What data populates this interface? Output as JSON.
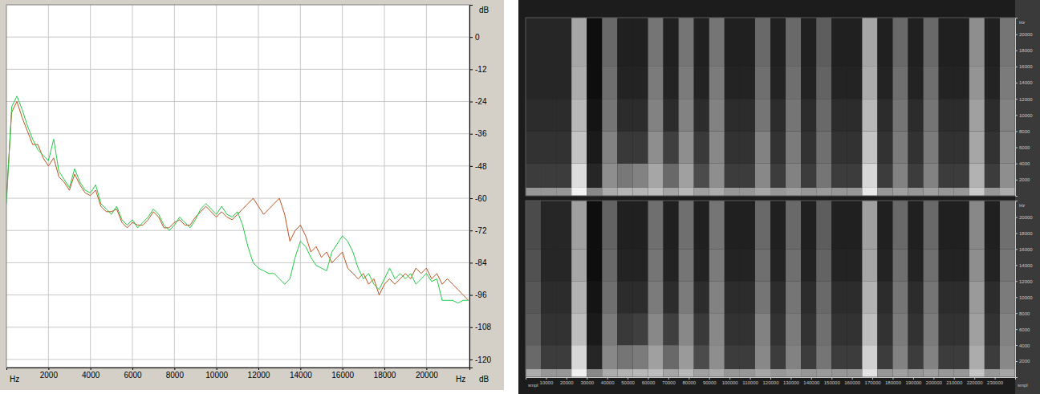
{
  "chart_data": [
    {
      "type": "line",
      "x_label": "Hz",
      "y_label": "dB",
      "x": [
        0,
        250,
        500,
        750,
        1000,
        1250,
        1500,
        1750,
        2000,
        2250,
        2500,
        2750,
        3000,
        3250,
        3500,
        3750,
        4000,
        4250,
        4500,
        4750,
        5000,
        5250,
        5500,
        5750,
        6000,
        6250,
        6500,
        6750,
        7000,
        7250,
        7500,
        7750,
        8000,
        8250,
        8500,
        8750,
        9000,
        9250,
        9500,
        9750,
        10000,
        10250,
        10500,
        10750,
        11000,
        11250,
        11500,
        11750,
        12000,
        12250,
        12500,
        12750,
        13000,
        13250,
        13500,
        13750,
        14000,
        14250,
        14500,
        14750,
        15000,
        15250,
        15500,
        15750,
        16000,
        16250,
        16500,
        16750,
        17000,
        17250,
        17500,
        17750,
        18000,
        18250,
        18500,
        18750,
        19000,
        19250,
        19500,
        19750,
        20000,
        20250,
        20500,
        20750,
        21000,
        21250,
        21500,
        21750,
        22000
      ],
      "series": [
        {
          "color": "#c0501e",
          "values": [
            -60,
            -28,
            -24,
            -30,
            -35,
            -40,
            -40,
            -45,
            -48,
            -45,
            -52,
            -54,
            -57,
            -51,
            -55,
            -58,
            -59,
            -57,
            -63,
            -65,
            -65,
            -64,
            -69,
            -71,
            -69,
            -70,
            -70,
            -68,
            -65,
            -67,
            -71,
            -71,
            -69,
            -68,
            -70,
            -70,
            -67,
            -65,
            -63,
            -65,
            -67,
            -65,
            -67,
            -68,
            -66,
            -64,
            -62,
            -60,
            -63,
            -66,
            -64,
            -62,
            -60,
            -66,
            -76,
            -72,
            -70,
            -74,
            -80,
            -78,
            -82,
            -80,
            -84,
            -82,
            -80,
            -86,
            -88,
            -90,
            -88,
            -92,
            -90,
            -96,
            -92,
            -90,
            -92,
            -90,
            -88,
            -90,
            -86,
            -88,
            -86,
            -90,
            -88,
            -92,
            -90,
            -92,
            -94,
            -96,
            -98
          ]
        },
        {
          "color": "#22cc44",
          "values": [
            -62,
            -26,
            -22,
            -27,
            -33,
            -38,
            -42,
            -44,
            -46,
            -38,
            -50,
            -53,
            -56,
            -49,
            -54,
            -57,
            -58,
            -55,
            -62,
            -64,
            -66,
            -63,
            -68,
            -70,
            -68,
            -71,
            -69,
            -67,
            -64,
            -66,
            -70,
            -72,
            -70,
            -67,
            -69,
            -71,
            -68,
            -64,
            -62,
            -64,
            -66,
            -63,
            -66,
            -67,
            -65,
            -70,
            -78,
            -84,
            -86,
            -87,
            -88,
            -88,
            -90,
            -92,
            -90,
            -82,
            -76,
            -78,
            -82,
            -85,
            -86,
            -87,
            -80,
            -77,
            -74,
            -76,
            -80,
            -86,
            -90,
            -88,
            -92,
            -94,
            -90,
            -86,
            -90,
            -88,
            -90,
            -88,
            -92,
            -90,
            -88,
            -91,
            -90,
            -98,
            -98,
            -98,
            -99,
            -98,
            -98
          ]
        }
      ],
      "xlim": [
        0,
        22050
      ],
      "xticks": [
        2000,
        4000,
        6000,
        8000,
        10000,
        12000,
        14000,
        16000,
        18000,
        20000
      ],
      "ylim": [
        -123,
        12
      ],
      "yticks": [
        0,
        -12,
        -24,
        -36,
        -48,
        -60,
        -72,
        -84,
        -96,
        -108,
        -120
      ],
      "grid": true
    },
    {
      "type": "heatmap",
      "y_label": "Hz",
      "tick_labels": "y",
      "x_bins": [
        0,
        7500,
        15000,
        22500,
        30000,
        37500,
        45000,
        52500,
        60000,
        67500,
        75000,
        82500,
        90000,
        97500,
        105000,
        112500,
        120000,
        127500,
        135000,
        142500,
        150000,
        157500,
        165000,
        172500,
        180000,
        187500,
        195000,
        202500,
        210000,
        217500,
        225000,
        232500,
        240000
      ],
      "y_bins": [
        0,
        1000,
        4000,
        8000,
        12000,
        16000,
        22050
      ],
      "cells": [
        [
          55,
          55,
          55,
          85,
          50,
          62,
          65,
          65,
          68,
          60,
          66,
          58,
          62,
          55,
          55,
          60,
          55,
          58,
          55,
          56,
          55,
          55,
          82,
          55,
          58,
          55,
          58,
          55,
          55,
          72,
          55,
          62
        ],
        [
          25,
          25,
          25,
          78,
          18,
          52,
          45,
          48,
          60,
          40,
          58,
          30,
          52,
          25,
          25,
          50,
          25,
          48,
          25,
          44,
          25,
          25,
          76,
          25,
          48,
          25,
          48,
          25,
          25,
          64,
          25,
          52
        ],
        [
          22,
          22,
          22,
          70,
          14,
          48,
          24,
          24,
          52,
          26,
          52,
          24,
          50,
          22,
          22,
          48,
          22,
          46,
          22,
          42,
          22,
          22,
          70,
          22,
          46,
          22,
          46,
          22,
          22,
          60,
          22,
          50
        ],
        [
          20,
          20,
          20,
          66,
          12,
          44,
          20,
          20,
          48,
          20,
          48,
          20,
          48,
          20,
          20,
          44,
          20,
          44,
          20,
          40,
          20,
          20,
          66,
          20,
          44,
          20,
          44,
          20,
          20,
          58,
          20,
          48
        ],
        [
          18,
          18,
          18,
          62,
          10,
          42,
          17,
          17,
          46,
          17,
          46,
          17,
          46,
          17,
          17,
          42,
          17,
          42,
          17,
          38,
          17,
          17,
          62,
          17,
          42,
          17,
          42,
          17,
          17,
          54,
          17,
          46
        ],
        [
          18,
          18,
          18,
          60,
          10,
          40,
          16,
          16,
          44,
          16,
          44,
          16,
          44,
          16,
          16,
          40,
          16,
          40,
          16,
          36,
          16,
          16,
          60,
          16,
          40,
          16,
          40,
          16,
          16,
          52,
          16,
          44
        ]
      ],
      "xlim": [
        0,
        240000
      ],
      "ylim": [
        0,
        22050
      ],
      "yticks": [
        2000,
        4000,
        6000,
        8000,
        10000,
        12000,
        14000,
        16000,
        18000,
        20000
      ]
    },
    {
      "type": "heatmap",
      "x_label": "smpl",
      "y_label": "Hz",
      "x_bins": [
        0,
        7500,
        15000,
        22500,
        30000,
        37500,
        45000,
        52500,
        60000,
        67500,
        75000,
        82500,
        90000,
        97500,
        105000,
        112500,
        120000,
        127500,
        135000,
        142500,
        150000,
        157500,
        165000,
        172500,
        180000,
        187500,
        195000,
        202500,
        210000,
        217500,
        225000,
        232500,
        240000
      ],
      "y_bins": [
        0,
        1000,
        4000,
        8000,
        12000,
        16000,
        22050
      ],
      "cells": [
        [
          62,
          55,
          55,
          84,
          50,
          62,
          64,
          66,
          68,
          60,
          66,
          58,
          62,
          55,
          55,
          60,
          55,
          58,
          55,
          56,
          55,
          55,
          80,
          55,
          58,
          55,
          58,
          55,
          55,
          70,
          55,
          60
        ],
        [
          40,
          25,
          25,
          76,
          18,
          50,
          44,
          46,
          58,
          40,
          56,
          30,
          52,
          25,
          25,
          50,
          25,
          48,
          25,
          44,
          25,
          25,
          74,
          25,
          48,
          25,
          48,
          25,
          25,
          62,
          25,
          50
        ],
        [
          36,
          22,
          22,
          68,
          14,
          46,
          24,
          26,
          50,
          26,
          50,
          24,
          50,
          22,
          22,
          48,
          22,
          46,
          22,
          42,
          22,
          22,
          68,
          22,
          46,
          22,
          46,
          22,
          22,
          58,
          22,
          48
        ],
        [
          34,
          20,
          20,
          64,
          12,
          42,
          20,
          20,
          46,
          20,
          46,
          20,
          48,
          20,
          20,
          44,
          20,
          44,
          20,
          40,
          20,
          20,
          64,
          20,
          44,
          20,
          44,
          20,
          20,
          56,
          20,
          46
        ],
        [
          32,
          18,
          18,
          60,
          10,
          40,
          17,
          17,
          44,
          17,
          44,
          17,
          46,
          17,
          17,
          42,
          17,
          42,
          17,
          38,
          17,
          17,
          60,
          17,
          42,
          17,
          42,
          17,
          17,
          52,
          17,
          44
        ],
        [
          30,
          18,
          18,
          58,
          10,
          38,
          16,
          16,
          42,
          16,
          42,
          16,
          44,
          16,
          16,
          40,
          16,
          40,
          16,
          36,
          16,
          16,
          58,
          16,
          40,
          16,
          40,
          16,
          16,
          50,
          16,
          42
        ]
      ],
      "xlim": [
        0,
        240000
      ],
      "xticks": [
        10000,
        20000,
        30000,
        40000,
        50000,
        60000,
        70000,
        80000,
        90000,
        100000,
        110000,
        120000,
        130000,
        140000,
        150000,
        160000,
        170000,
        180000,
        190000,
        200000,
        210000,
        220000,
        230000
      ],
      "ylim": [
        0,
        22050
      ],
      "yticks": [
        2000,
        4000,
        6000,
        8000,
        10000,
        12000,
        14000,
        16000,
        18000,
        20000
      ]
    }
  ]
}
